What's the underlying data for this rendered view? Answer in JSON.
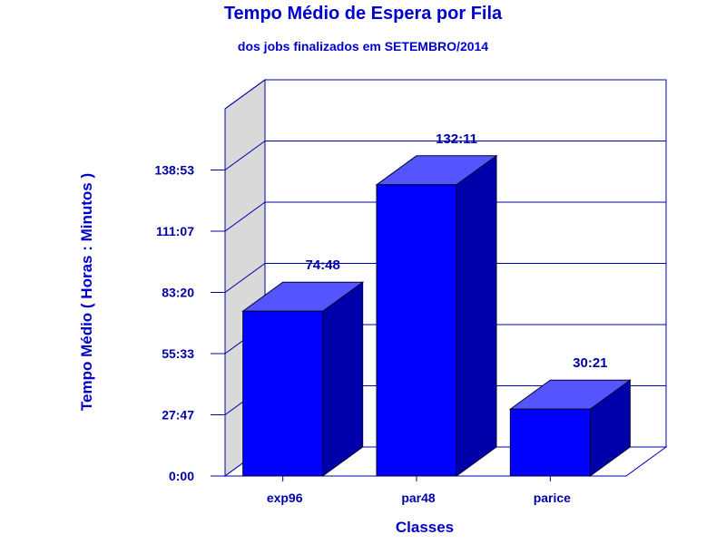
{
  "chart_data": {
    "type": "bar",
    "title": "Tempo Médio de Espera por Fila",
    "subtitle": "dos jobs finalizados em SETEMBRO/2014",
    "xlabel": "Classes",
    "ylabel": "Tempo Médio ( Horas : Minutos )",
    "categories": [
      "exp96",
      "par48",
      "parice"
    ],
    "values": [
      74.8,
      132.1833,
      30.35
    ],
    "value_labels": [
      "74:48",
      "132:11",
      "30:21"
    ],
    "y_ticks": [
      0,
      27.7833,
      55.55,
      83.3333,
      111.1167,
      138.8833
    ],
    "y_tick_labels": [
      "0:00",
      "27:47",
      "55:33",
      "83:20",
      "111:07",
      "138:53"
    ],
    "ylim": [
      0,
      166.6667
    ],
    "grid": true,
    "legend": "none",
    "colors": {
      "bar_front": "#0000ff",
      "bar_top": "#5555ff",
      "bar_side": "#0000aa",
      "wall_side": "#d9d9d9",
      "grid": "#0000aa",
      "text": "#0000cc"
    }
  }
}
